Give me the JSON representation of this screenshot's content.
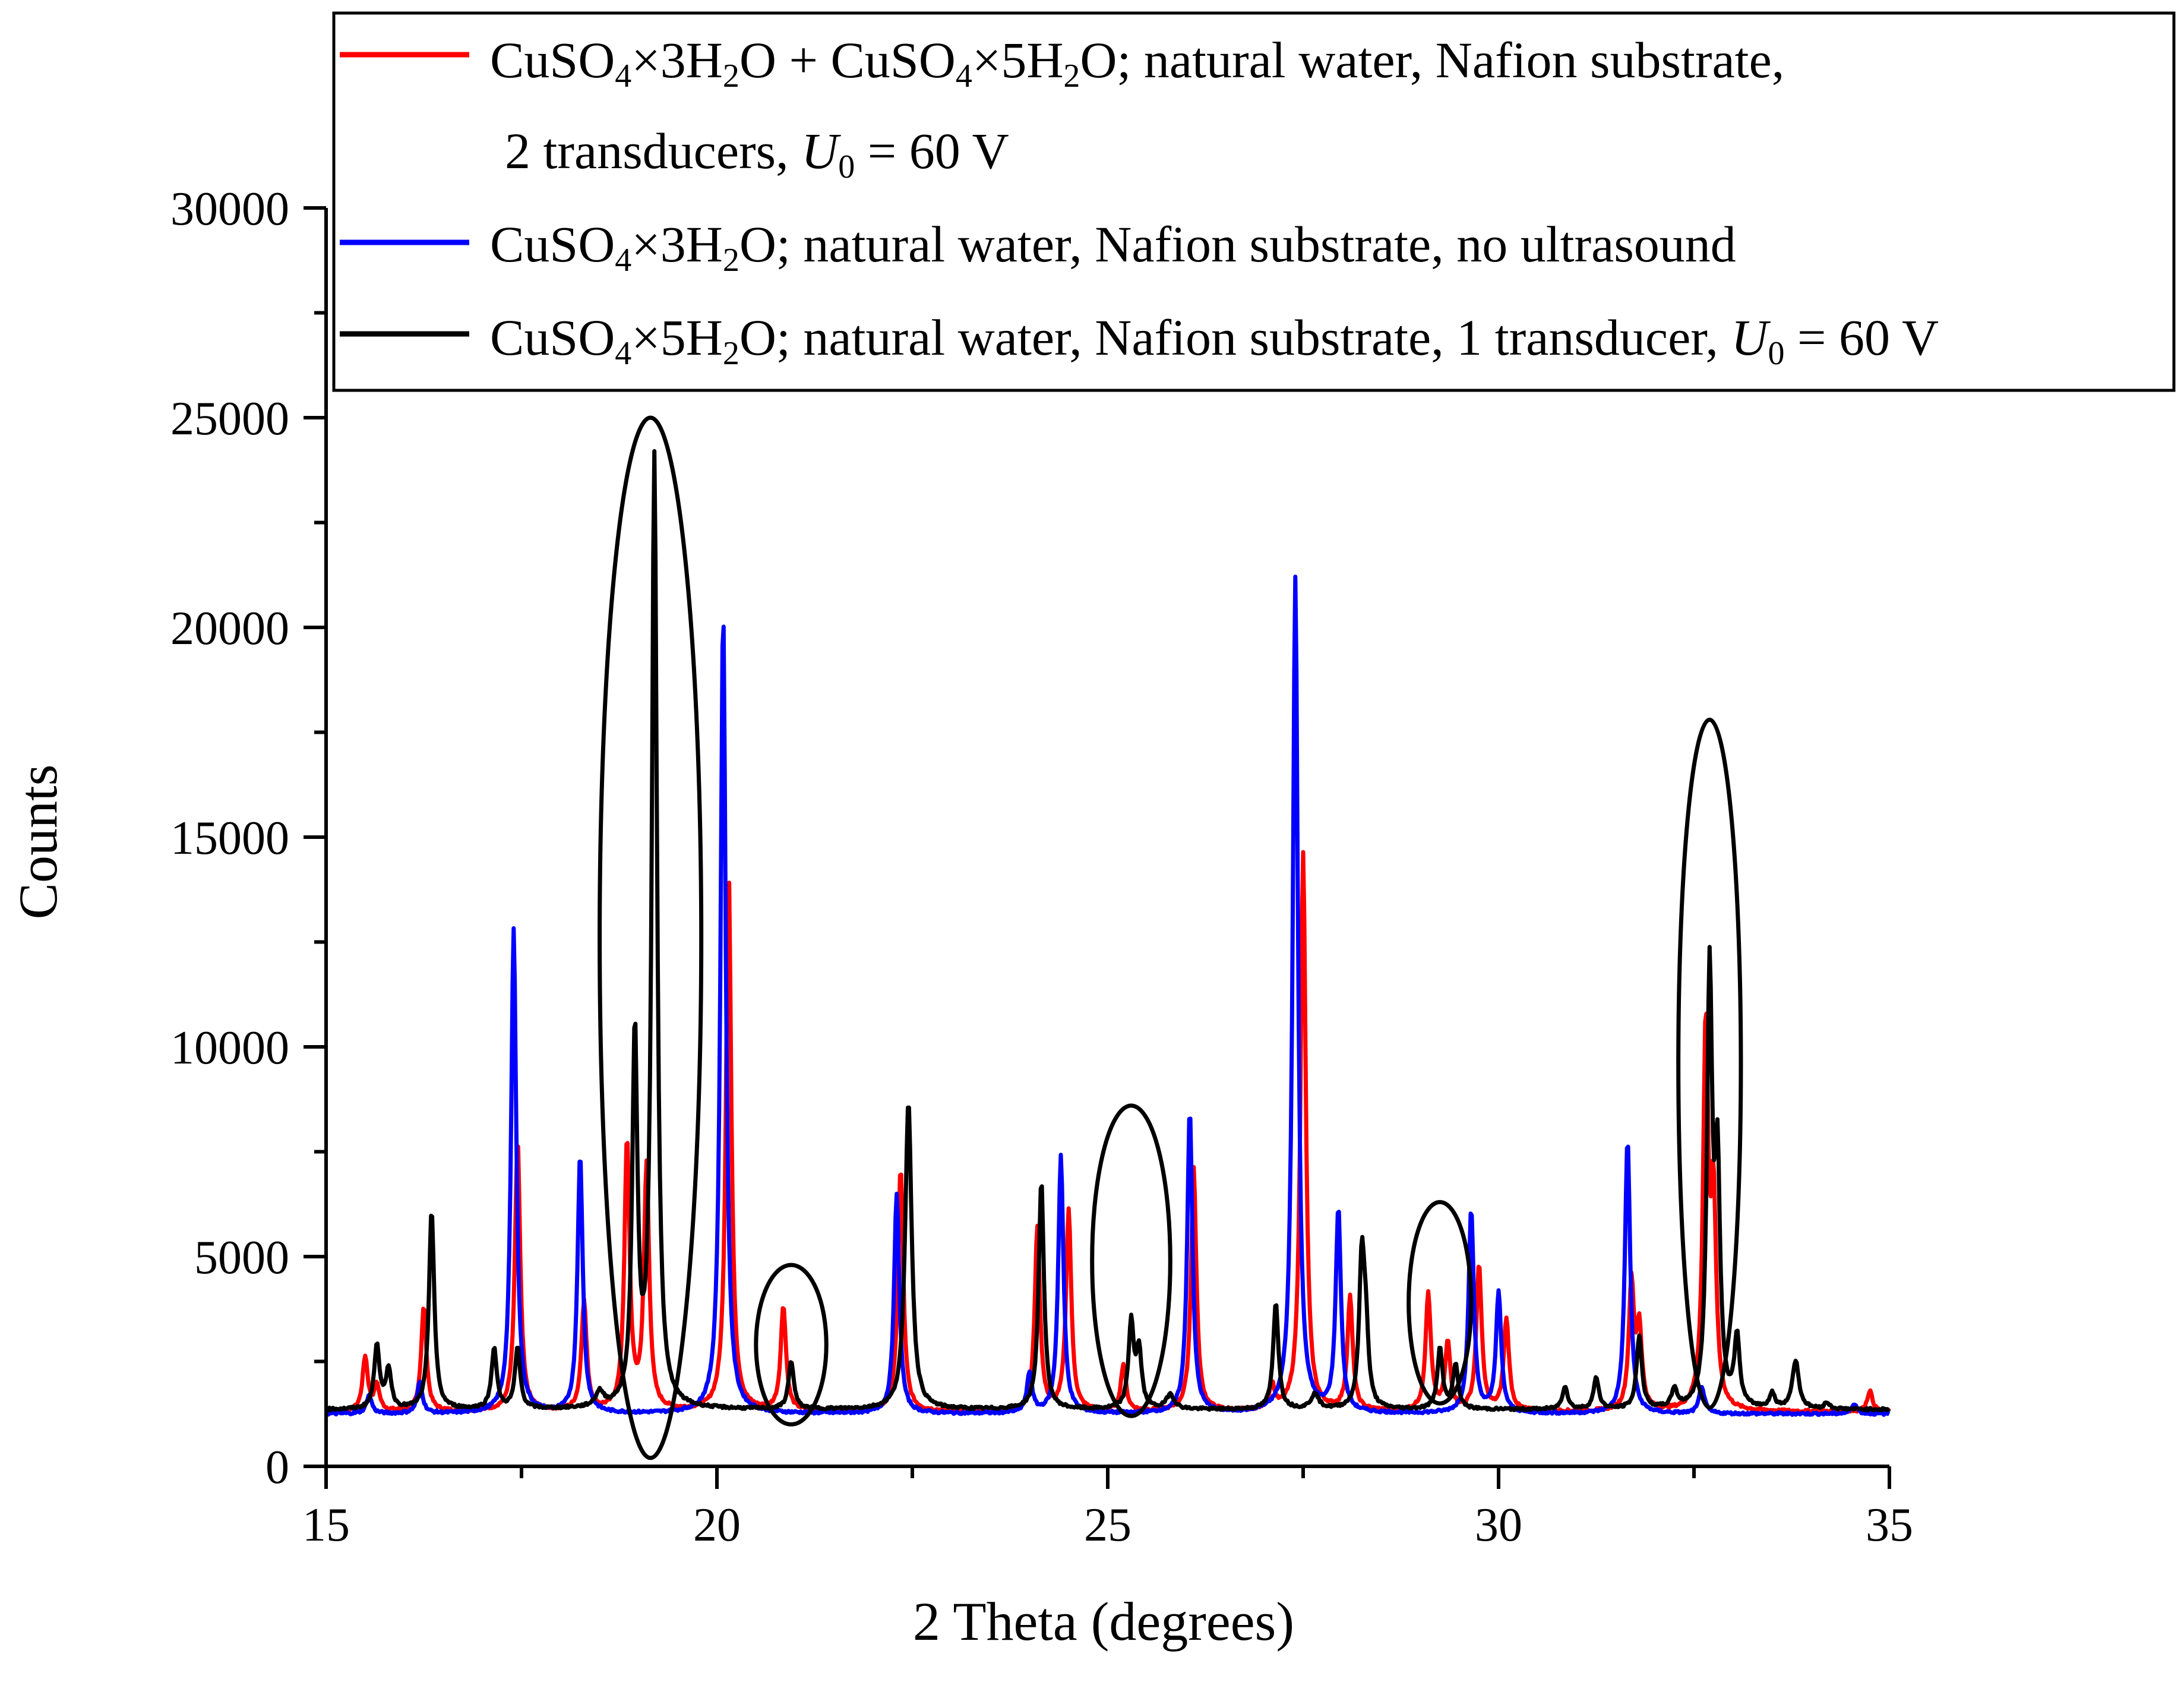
{
  "chart_data": {
    "type": "line",
    "xlabel": "2 Theta (degrees)",
    "ylabel": "Counts",
    "xlim": [
      15,
      35
    ],
    "ylim": [
      0,
      30000
    ],
    "x_ticks": [
      15,
      20,
      25,
      30,
      35
    ],
    "y_ticks": [
      0,
      5000,
      10000,
      15000,
      20000,
      25000,
      30000
    ],
    "x_tick_labels": [
      "15",
      "20",
      "25",
      "30",
      "35"
    ],
    "y_tick_labels": [
      "0",
      "5000",
      "10000",
      "15000",
      "20000",
      "25000",
      "30000"
    ],
    "grid": false,
    "legend_position": "top-right",
    "series": [
      {
        "name": "CuSO4×3H2O + CuSO4×5H2O; natural water, Nafion substrate, 2 transducers, U0 = 60 V",
        "color": "#ff0000",
        "baseline": 1300,
        "peaks": [
          [
            15.5,
            2600,
            0.04
          ],
          [
            15.65,
            1900,
            0.04
          ],
          [
            16.25,
            3800,
            0.04
          ],
          [
            17.45,
            7800,
            0.04
          ],
          [
            18.3,
            3900,
            0.04
          ],
          [
            18.85,
            7700,
            0.04
          ],
          [
            19.1,
            7100,
            0.04
          ],
          [
            20.15,
            14300,
            0.04
          ],
          [
            20.85,
            3800,
            0.04
          ],
          [
            22.35,
            7100,
            0.04
          ],
          [
            24.1,
            5700,
            0.04
          ],
          [
            24.5,
            6100,
            0.04
          ],
          [
            25.2,
            2400,
            0.04
          ],
          [
            26.1,
            7100,
            0.04
          ],
          [
            27.1,
            1900,
            0.04
          ],
          [
            27.5,
            14600,
            0.04
          ],
          [
            28.1,
            4000,
            0.04
          ],
          [
            29.1,
            4100,
            0.04
          ],
          [
            29.35,
            2900,
            0.04
          ],
          [
            29.75,
            4800,
            0.04
          ],
          [
            30.1,
            3500,
            0.04
          ],
          [
            31.7,
            4300,
            0.04
          ],
          [
            31.8,
            3200,
            0.04
          ],
          [
            32.65,
            10300,
            0.04
          ],
          [
            32.75,
            6000,
            0.04
          ],
          [
            34.75,
            1800,
            0.04
          ]
        ]
      },
      {
        "name": "CuSO4×3H2O; natural water, Nafion substrate, no ultrasound",
        "color": "#0000ff",
        "baseline": 1250,
        "peaks": [
          [
            15.55,
            1700,
            0.04
          ],
          [
            16.2,
            2000,
            0.04
          ],
          [
            17.4,
            12800,
            0.04
          ],
          [
            18.25,
            7400,
            0.04
          ],
          [
            20.08,
            20400,
            0.04
          ],
          [
            22.3,
            6500,
            0.04
          ],
          [
            24.0,
            2200,
            0.04
          ],
          [
            24.4,
            7400,
            0.04
          ],
          [
            26.05,
            8500,
            0.04
          ],
          [
            27.4,
            21200,
            0.04
          ],
          [
            27.95,
            6100,
            0.04
          ],
          [
            29.65,
            6100,
            0.04
          ],
          [
            30.0,
            4100,
            0.04
          ],
          [
            31.65,
            7800,
            0.04
          ],
          [
            32.6,
            1900,
            0.04
          ],
          [
            34.55,
            1500,
            0.04
          ]
        ]
      },
      {
        "name": "CuSO4×5H2O; natural water, Nafion substrate, 1 transducer, U0 = 60 V",
        "color": "#000000",
        "baseline": 1350,
        "peaks": [
          [
            15.65,
            2900,
            0.04
          ],
          [
            15.8,
            2300,
            0.04
          ],
          [
            16.35,
            6100,
            0.04
          ],
          [
            17.15,
            2800,
            0.04
          ],
          [
            17.45,
            2800,
            0.04
          ],
          [
            18.5,
            1700,
            0.06
          ],
          [
            18.95,
            10200,
            0.04
          ],
          [
            19.2,
            24000,
            0.04
          ],
          [
            20.95,
            2500,
            0.04
          ],
          [
            22.45,
            8700,
            0.05
          ],
          [
            24.15,
            6800,
            0.04
          ],
          [
            25.3,
            3400,
            0.04
          ],
          [
            25.4,
            2700,
            0.04
          ],
          [
            25.8,
            1700,
            0.06
          ],
          [
            27.15,
            3900,
            0.04
          ],
          [
            27.65,
            1700,
            0.06
          ],
          [
            28.25,
            4800,
            0.04
          ],
          [
            28.3,
            3000,
            0.04
          ],
          [
            29.25,
            2800,
            0.04
          ],
          [
            29.45,
            2400,
            0.04
          ],
          [
            30.85,
            1900,
            0.04
          ],
          [
            31.25,
            2100,
            0.04
          ],
          [
            31.8,
            3100,
            0.04
          ],
          [
            32.25,
            1800,
            0.04
          ],
          [
            32.7,
            11600,
            0.04
          ],
          [
            32.8,
            6800,
            0.04
          ],
          [
            33.05,
            3000,
            0.04
          ],
          [
            33.5,
            1700,
            0.04
          ],
          [
            33.8,
            2500,
            0.05
          ],
          [
            34.2,
            1500,
            0.04
          ]
        ]
      }
    ],
    "legend": [
      {
        "color": "#ff0000",
        "line1": [
          {
            "t": "CuSO"
          },
          {
            "t": "4",
            "s": "sub"
          },
          {
            "t": "×3H"
          },
          {
            "t": "2",
            "s": "sub"
          },
          {
            "t": "O + CuSO"
          },
          {
            "t": "4",
            "s": "sub"
          },
          {
            "t": "×5H"
          },
          {
            "t": "2",
            "s": "sub"
          },
          {
            "t": "O; natural water, Nafion substrate,"
          }
        ],
        "line2": [
          {
            "t": "2 transducers, "
          },
          {
            "t": "U",
            "s": "i"
          },
          {
            "t": "0",
            "s": "sub"
          },
          {
            "t": " = 60 V"
          }
        ]
      },
      {
        "color": "#0000ff",
        "line1": [
          {
            "t": "CuSO"
          },
          {
            "t": "4",
            "s": "sub"
          },
          {
            "t": "×3H"
          },
          {
            "t": "2",
            "s": "sub"
          },
          {
            "t": "O; natural water, Nafion substrate, no ultrasound"
          }
        ]
      },
      {
        "color": "#000000",
        "line1": [
          {
            "t": "CuSO"
          },
          {
            "t": "4",
            "s": "sub"
          },
          {
            "t": "×5H"
          },
          {
            "t": "2",
            "s": "sub"
          },
          {
            "t": "O; natural water, Nafion substrate, 1 transducer, "
          },
          {
            "t": "U",
            "s": "i"
          },
          {
            "t": "0",
            "s": "sub"
          },
          {
            "t": " = 60 V"
          }
        ]
      }
    ],
    "annotations": [
      {
        "type": "ellipse",
        "cx": 19.15,
        "cy": 12600,
        "rx": 0.65,
        "ry": 12400
      },
      {
        "type": "ellipse",
        "cx": 20.95,
        "cy": 2900,
        "rx": 0.45,
        "ry": 1900
      },
      {
        "type": "ellipse",
        "cx": 25.3,
        "cy": 4900,
        "rx": 0.5,
        "ry": 3700
      },
      {
        "type": "ellipse",
        "cx": 29.25,
        "cy": 3900,
        "rx": 0.4,
        "ry": 2400
      },
      {
        "type": "ellipse",
        "cx": 32.7,
        "cy": 9600,
        "rx": 0.4,
        "ry": 8200
      }
    ]
  }
}
